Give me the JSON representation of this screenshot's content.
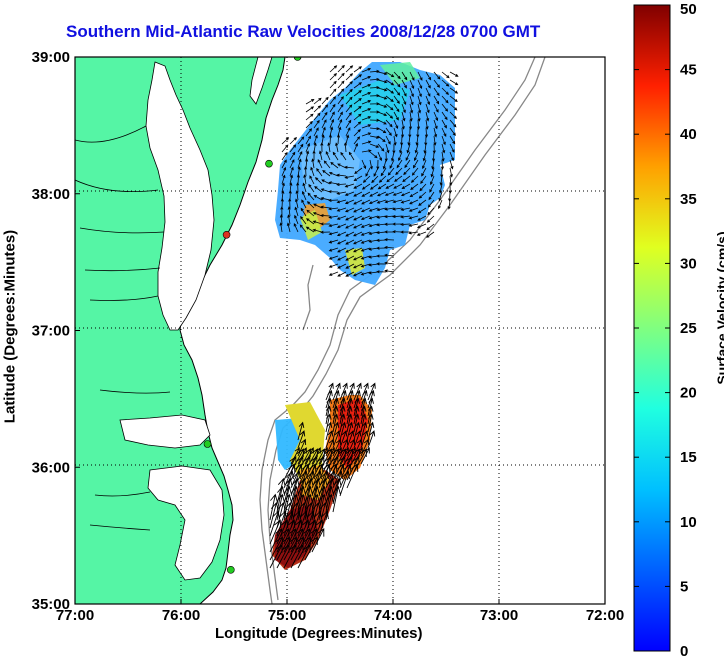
{
  "title": "Southern Mid-Atlantic Raw Velocities 2008/12/28 0700 GMT",
  "xlabel": "Longitude (Degrees:Minutes)",
  "ylabel": "Latitude (Degrees:Minutes)",
  "colorbar": {
    "label": "Surface Velocity (cm/s)",
    "ticks": [
      "0",
      "5",
      "10",
      "15",
      "20",
      "25",
      "30",
      "35",
      "40",
      "45",
      "50"
    ],
    "range": [
      0,
      50
    ],
    "colormap": "jet"
  },
  "map": {
    "lon_ticks": [
      "77:00",
      "76:00",
      "75:00",
      "74:00",
      "73:00",
      "72:00"
    ],
    "lat_ticks": [
      "35:00",
      "36:00",
      "37:00",
      "38:00",
      "39:00"
    ],
    "lon_range": [
      -77,
      -72
    ],
    "lat_range": [
      35,
      39
    ],
    "land_color": "#55f5a5",
    "grid": "dotted",
    "stations": [
      {
        "lon": -74.9,
        "lat": 39.0,
        "color": "#22cc22"
      },
      {
        "lon": -75.17,
        "lat": 38.22,
        "color": "#22cc22"
      },
      {
        "lon": -75.57,
        "lat": 37.7,
        "color": "#dd3322"
      },
      {
        "lon": -75.75,
        "lat": 36.17,
        "color": "#22cc22"
      },
      {
        "lon": -75.53,
        "lat": 35.25,
        "color": "#22cc22"
      }
    ]
  },
  "velocity_fields": [
    {
      "region": "north",
      "speed_range_cm_s": [
        5,
        25
      ],
      "typical_speed_cm_s": 10
    },
    {
      "region": "south",
      "speed_range_cm_s": [
        10,
        50
      ],
      "typical_speed_cm_s": 40
    }
  ]
}
